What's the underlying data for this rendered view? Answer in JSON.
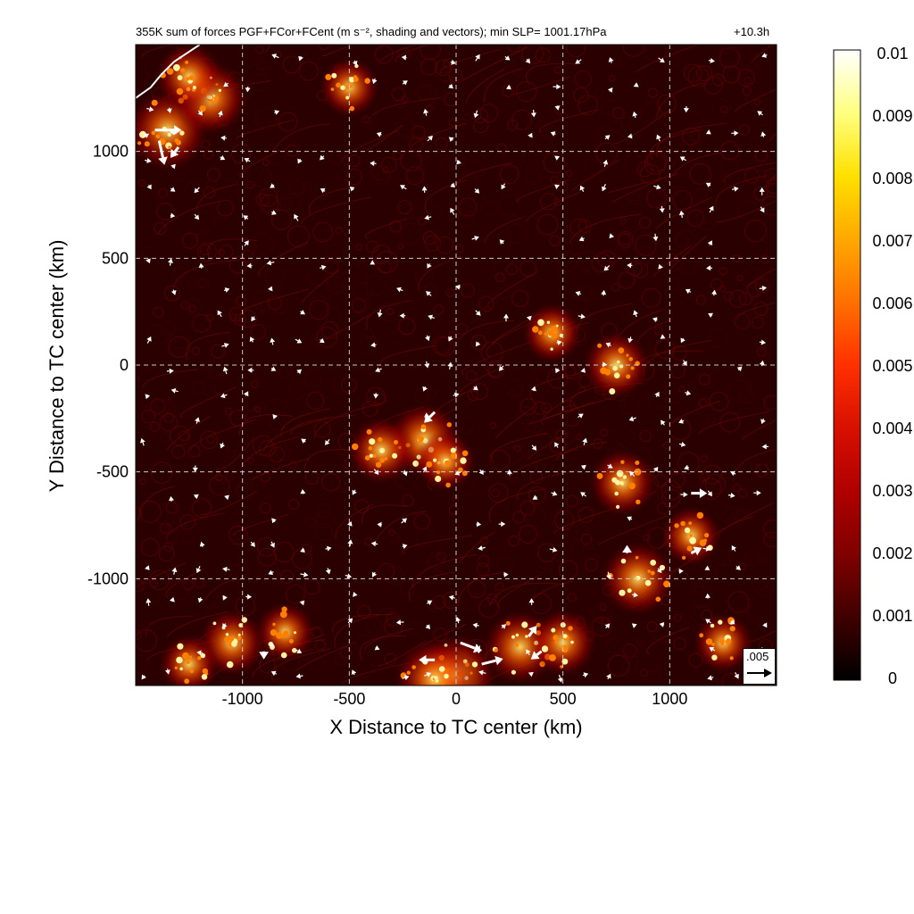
{
  "title": "355K sum of forces PGF+FCor+FCent (m s⁻², shading and vectors); min SLP= 1001.17hPa",
  "time_label": "+10.3h",
  "reference_vector_label": ".005",
  "chart_data": {
    "type": "heatmap",
    "xlabel": "X Distance to TC center (km)",
    "ylabel": "Y Distance to TC center (km)",
    "xlim": [
      -1500,
      1500
    ],
    "ylim": [
      -1500,
      1500
    ],
    "x_ticks": [
      "-1000",
      "-500",
      "0",
      "500",
      "1000"
    ],
    "y_ticks": [
      "1000",
      "500",
      "0",
      "-500",
      "-1000"
    ],
    "grid": true,
    "colorbar": {
      "min": 0,
      "max": 0.01,
      "ticks": [
        "0.01",
        "0.009",
        "0.008",
        "0.007",
        "0.006",
        "0.005",
        "0.004",
        "0.003",
        "0.002",
        "0.001",
        "0"
      ],
      "colormap": [
        "#000000",
        "#400000",
        "#800000",
        "#b00000",
        "#d81000",
        "#ff3000",
        "#ff7000",
        "#ffa800",
        "#ffe000",
        "#ffff80",
        "#ffffff"
      ]
    },
    "hotspots": [
      {
        "x": -1350,
        "y": 1100,
        "v": 0.006
      },
      {
        "x": -1150,
        "y": 1250,
        "v": 0.005
      },
      {
        "x": -1250,
        "y": 1350,
        "v": 0.004
      },
      {
        "x": -500,
        "y": 1300,
        "v": 0.003
      },
      {
        "x": -150,
        "y": -350,
        "v": 0.005
      },
      {
        "x": -350,
        "y": -400,
        "v": 0.004
      },
      {
        "x": -50,
        "y": -450,
        "v": 0.003
      },
      {
        "x": 450,
        "y": 150,
        "v": 0.003
      },
      {
        "x": 750,
        "y": 0,
        "v": 0.004
      },
      {
        "x": 780,
        "y": -550,
        "v": 0.004
      },
      {
        "x": 850,
        "y": -1000,
        "v": 0.005
      },
      {
        "x": 1100,
        "y": -800,
        "v": 0.003
      },
      {
        "x": 1250,
        "y": -1300,
        "v": 0.003
      },
      {
        "x": 300,
        "y": -1320,
        "v": 0.005
      },
      {
        "x": 500,
        "y": -1300,
        "v": 0.004
      },
      {
        "x": 0,
        "y": -1450,
        "v": 0.006
      },
      {
        "x": -100,
        "y": -1470,
        "v": 0.006
      },
      {
        "x": -1050,
        "y": -1300,
        "v": 0.004
      },
      {
        "x": -800,
        "y": -1250,
        "v": 0.003
      },
      {
        "x": -1250,
        "y": -1400,
        "v": 0.003
      }
    ],
    "large_vectors": [
      {
        "x": -1410,
        "y": 1100,
        "u": 0.005,
        "v": 0.0
      },
      {
        "x": -1390,
        "y": 1050,
        "u": 0.001,
        "v": -0.0045
      },
      {
        "x": -1300,
        "y": 1020,
        "u": -0.0015,
        "v": -0.002
      },
      {
        "x": -100,
        "y": -220,
        "u": -0.002,
        "v": -0.002
      },
      {
        "x": 20,
        "y": -1300,
        "u": 0.004,
        "v": -0.0015
      },
      {
        "x": 120,
        "y": -1400,
        "u": 0.004,
        "v": 0.001
      },
      {
        "x": 400,
        "y": -1340,
        "u": -0.002,
        "v": -0.0015
      },
      {
        "x": -100,
        "y": -1380,
        "u": -0.003,
        "v": 0.0
      },
      {
        "x": 1100,
        "y": -600,
        "u": 0.003,
        "v": 0.0
      },
      {
        "x": 1100,
        "y": -880,
        "u": 0.002,
        "v": 0.001
      },
      {
        "x": 800,
        "y": -880,
        "u": 0.0,
        "v": 0.0015
      },
      {
        "x": 340,
        "y": -1270,
        "u": 0.0015,
        "v": 0.002
      },
      {
        "x": -900,
        "y": -1340,
        "u": 0.0,
        "v": -0.0015
      }
    ],
    "coastline": [
      [
        -1500,
        1250
      ],
      [
        -1430,
        1300
      ],
      [
        -1380,
        1360
      ],
      [
        -1320,
        1420
      ],
      [
        -1260,
        1460
      ],
      [
        -1200,
        1500
      ]
    ]
  }
}
